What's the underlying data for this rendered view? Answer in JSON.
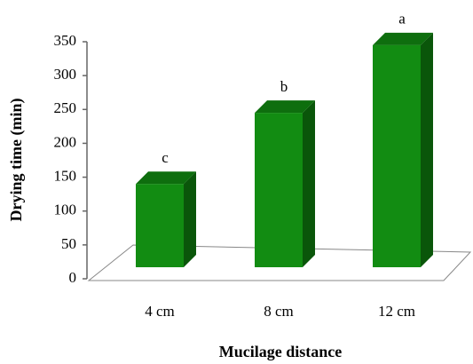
{
  "chart_data": {
    "type": "bar3d",
    "x_label": "Mucilage distance",
    "y_label": "Drying time (min)",
    "categories": [
      "4 cm",
      "8 cm",
      "12 cm"
    ],
    "values": [
      140,
      245,
      345
    ],
    "annotations": [
      "c",
      "b",
      "a"
    ],
    "color": "#128c12",
    "ylim": [
      0,
      350
    ],
    "yticks": [
      0,
      50,
      100,
      150,
      200,
      250,
      300,
      350
    ],
    "grid": false
  }
}
